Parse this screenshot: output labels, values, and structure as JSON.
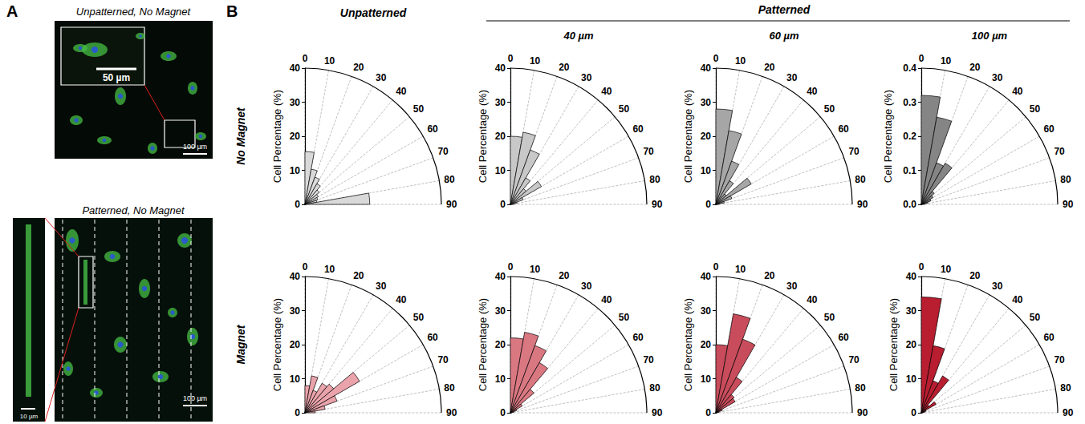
{
  "panel_labels": [
    "A",
    "B"
  ],
  "images": [
    {
      "title": "Unpatterned, No Magnet",
      "scale_bars": [
        "50 µm",
        "100 µm"
      ]
    },
    {
      "title": "Patterned, No Magnet",
      "scale_bars": [
        "10 µm",
        "100 µm"
      ]
    }
  ],
  "column_group": "Patterned",
  "columns": [
    "Unpatterned",
    "40 µm",
    "60 µm",
    "100 µm"
  ],
  "rows": [
    "No Magnet",
    "Magnet"
  ],
  "chart_data": [
    {
      "type": "rose",
      "y_label": "Cell Percentage (%)",
      "bins": [
        0,
        10,
        20,
        30,
        40,
        50,
        60,
        70,
        80,
        90
      ],
      "values": [
        15.5,
        10.5,
        8.5,
        7,
        5.5,
        4.5,
        4,
        3.5,
        19
      ],
      "color": "#d9d9d9",
      "xlim": [
        0,
        90
      ],
      "xticks": [
        0,
        10,
        20,
        30,
        40,
        50,
        60,
        70,
        80,
        90
      ],
      "ylim": [
        0,
        40
      ],
      "yticks": [
        0,
        10,
        20,
        30,
        40
      ],
      "grid": true
    },
    {
      "type": "rose",
      "y_label": "Cell Percentage (%)",
      "bins": [
        0,
        10,
        20,
        30,
        40,
        50,
        60,
        70,
        80,
        90
      ],
      "values": [
        20,
        21.5,
        17,
        9,
        6,
        10.5,
        4,
        2,
        1
      ],
      "color": "#c8c8c8",
      "xlim": [
        0,
        90
      ],
      "xticks": [
        0,
        10,
        20,
        30,
        40,
        50,
        60,
        70,
        80,
        90
      ],
      "ylim": [
        0,
        40
      ],
      "yticks": [
        0,
        10,
        20,
        30,
        40
      ],
      "grid": true
    },
    {
      "type": "rose",
      "y_label": "Cell Percentage (%)",
      "bins": [
        0,
        10,
        20,
        30,
        40,
        50,
        60,
        70,
        80,
        90
      ],
      "values": [
        28,
        22,
        13.5,
        8,
        4,
        12,
        5,
        2.5,
        1
      ],
      "color": "#a6a6a6",
      "xlim": [
        0,
        90
      ],
      "xticks": [
        0,
        10,
        20,
        30,
        40,
        50,
        60,
        70,
        80,
        90
      ],
      "ylim": [
        0,
        40
      ],
      "yticks": [
        0,
        10,
        20,
        30,
        40
      ],
      "grid": true
    },
    {
      "type": "rose",
      "y_label": "Cell Percentage (%)",
      "bins": [
        0,
        10,
        20,
        30,
        40,
        50,
        60,
        70,
        80,
        90
      ],
      "values": [
        0.32,
        0.26,
        0.13,
        0.14,
        0.05,
        0.04,
        0.03,
        0.02,
        0.01
      ],
      "color": "#858585",
      "xlim": [
        0,
        90
      ],
      "xticks": [
        0,
        10,
        20,
        30,
        40,
        50,
        60,
        70,
        80,
        90
      ],
      "ylim": [
        0,
        0.4
      ],
      "yticks": [
        {
          "value": 0,
          "label": "0.0"
        },
        0.1,
        0.2,
        0.3,
        0.4
      ],
      "grid": true
    },
    {
      "type": "rose",
      "y_label": "Cell Percentage (%)",
      "bins": [
        0,
        10,
        20,
        30,
        40,
        50,
        60,
        70,
        80,
        90
      ],
      "values": [
        8,
        11,
        7,
        10,
        11,
        18.5,
        10,
        6,
        3
      ],
      "color": "#eaa3ab",
      "xlim": [
        0,
        90
      ],
      "xticks": [
        0,
        10,
        20,
        30,
        40,
        50,
        60,
        70,
        80,
        90
      ],
      "ylim": [
        0,
        40
      ],
      "yticks": [
        0,
        10,
        20,
        30,
        40
      ],
      "grid": true
    },
    {
      "type": "rose",
      "y_label": "Cell Percentage (%)",
      "bins": [
        0,
        10,
        20,
        30,
        40,
        50,
        60,
        70,
        80,
        90
      ],
      "values": [
        22,
        24,
        21,
        17,
        9,
        4,
        2,
        1,
        0.5
      ],
      "color": "#da7882",
      "xlim": [
        0,
        90
      ],
      "xticks": [
        0,
        10,
        20,
        30,
        40,
        50,
        60,
        70,
        80,
        90
      ],
      "ylim": [
        0,
        40
      ],
      "yticks": [
        0,
        10,
        20,
        30,
        40
      ],
      "grid": true
    },
    {
      "type": "rose",
      "y_label": "Cell Percentage (%)",
      "bins": [
        0,
        10,
        20,
        30,
        40,
        50,
        60,
        70,
        80,
        90
      ],
      "values": [
        20,
        29.5,
        23,
        12,
        7,
        6.5,
        2,
        1,
        0.5
      ],
      "color": "#c84c5b",
      "xlim": [
        0,
        90
      ],
      "xticks": [
        0,
        10,
        20,
        30,
        40,
        50,
        60,
        70,
        80,
        90
      ],
      "ylim": [
        0,
        40
      ],
      "yticks": [
        0,
        10,
        20,
        30,
        40
      ],
      "grid": true
    },
    {
      "type": "rose",
      "y_label": "Cell Percentage (%)",
      "bins": [
        0,
        10,
        20,
        30,
        40,
        50,
        60,
        70,
        80,
        90
      ],
      "values": [
        34,
        20,
        10,
        12.5,
        3,
        5,
        1.5,
        1,
        0.5
      ],
      "color": "#b81d30",
      "xlim": [
        0,
        90
      ],
      "xticks": [
        0,
        10,
        20,
        30,
        40,
        50,
        60,
        70,
        80,
        90
      ],
      "ylim": [
        0,
        40
      ],
      "yticks": [
        0,
        10,
        20,
        30,
        40
      ],
      "grid": true
    }
  ]
}
